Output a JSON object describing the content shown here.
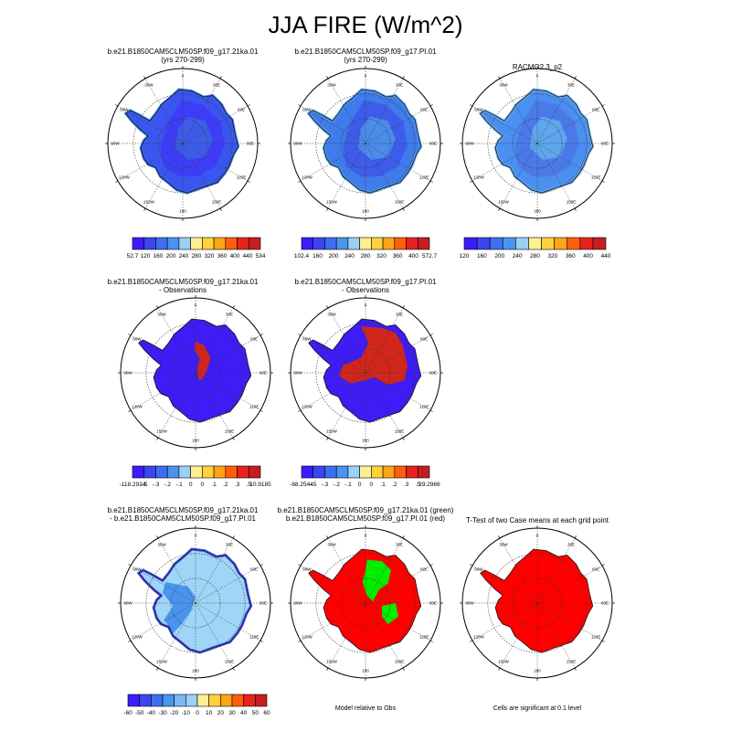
{
  "title": "JJA FIRE (W/m^2)",
  "grid_labels": [
    "0",
    "30E",
    "60E",
    "90E",
    "120E",
    "150E",
    "180",
    "150W",
    "120W",
    "90W",
    "60W",
    "30W"
  ],
  "rows": [
    {
      "panels": [
        {
          "title1": "b.e21.B1850CAM5CLM50SP.f09_g17.21ka.01",
          "title2": "(yrs 270-299)",
          "fill": "#3a55f0",
          "interior": "#3d3df7",
          "interior2": "#3d5de8",
          "coast": "#2f6fe6"
        },
        {
          "title1": "b.e21.B1850CAM5CLM50SP.f09_g17.PI.01",
          "title2": "(yrs 270-299)",
          "fill": "#3f7bea",
          "interior": "#3d5ce9",
          "interior2": "#4a8ce8",
          "coast": "#5aa8ec"
        },
        {
          "title1": "RACMO2.3_p2",
          "title2": "",
          "fill": "#4b8ff0",
          "interior": "#4a7ae8",
          "interior2": "#5ea6ee",
          "coast": "#6db7f1"
        }
      ],
      "colorbars": [
        {
          "colors": [
            "#3b1cff",
            "#3b46f0",
            "#3d6ff0",
            "#4a94f0",
            "#9ad0f6",
            "#ffef93",
            "#ffd23c",
            "#ffa318",
            "#ff5e0c",
            "#e8221c",
            "#c41e21"
          ],
          "labels": [
            "52.7",
            "120",
            "160",
            "200",
            "240",
            "280",
            "320",
            "360",
            "400",
            "440",
            "534"
          ]
        },
        {
          "colors": [
            "#3b1cff",
            "#3b46f0",
            "#3d6ff0",
            "#4a94f0",
            "#9ad0f6",
            "#ffef93",
            "#ffd23c",
            "#ffa318",
            "#ff5e0c",
            "#e8221c",
            "#c41e21"
          ],
          "labels": [
            "102.4",
            "160",
            "200",
            "240",
            "280",
            "320",
            "360",
            "400",
            "572.7"
          ]
        },
        {
          "colors": [
            "#3b1cff",
            "#3b46f0",
            "#3d6ff0",
            "#4a94f0",
            "#9ad0f6",
            "#ffef93",
            "#ffd23c",
            "#ffa318",
            "#ff5e0c",
            "#e8221c",
            "#c41e21"
          ],
          "labels": [
            "120",
            "160",
            "200",
            "240",
            "280",
            "320",
            "360",
            "400",
            "440"
          ]
        }
      ]
    },
    {
      "panels": [
        {
          "title1": "b.e21.B1850CAM5CLM50SP.f09_g17.21ka.01",
          "title2": "- Observations",
          "fill": "#3d1cf5",
          "interior": "#d1261c",
          "coast": "#3d1cf5"
        },
        {
          "title1": "b.e21.B1850CAM5CLM50SP.f09_g17.PI.01",
          "title2": "- Observations",
          "fill": "#3d1cf5",
          "interior": "#d0261c",
          "coast": "#3d1cf5"
        }
      ],
      "colorbars": [
        {
          "colors": [
            "#3b1cff",
            "#3b46f0",
            "#3d6ff0",
            "#4a94f0",
            "#9ad0f6",
            "#ffef93",
            "#ffd23c",
            "#ffa318",
            "#ff5e0c",
            "#e8221c",
            "#c41e21"
          ],
          "labels": [
            "-118.2924",
            "-.5",
            "-.3",
            "-.2",
            "-.1",
            "0",
            "0",
            ".1",
            ".2",
            ".3",
            ".5",
            "10.9185"
          ]
        },
        {
          "colors": [
            "#3b1cff",
            "#3b46f0",
            "#3d6ff0",
            "#4a94f0",
            "#9ad0f6",
            "#ffef93",
            "#ffd23c",
            "#ffa318",
            "#ff5e0c",
            "#e8221c",
            "#c41e21"
          ],
          "labels": [
            "-68.2544",
            "-.5",
            "-.3",
            "-.2",
            "-.1",
            "0",
            "0",
            ".1",
            ".2",
            ".3",
            ".5",
            "29.2966"
          ]
        }
      ]
    },
    {
      "panels": [
        {
          "title1": "b.e21.B1850CAM5CLM50SP.f09_g17.21ka.01",
          "title2": "- b.e21.B1850CAM5CLM50SP.f09_g17.PI.01",
          "fill": "#9fd6f7",
          "interior": "#4a94f0",
          "coast": "#3b46f0"
        },
        {
          "title1": "b.e21.B1850CAM5CLM50SP.f09_g17.21ka.01 (green)",
          "title2": "b.e21.B1850CAM5CLM50SP.f09_g17.PI.01 (red)",
          "fill": "#ff0000",
          "interior": "#00ee00",
          "coast": "#ff0000",
          "caption": "Model relative to Obs"
        },
        {
          "title1": "T-Test of two Case means at each grid point",
          "title2": "",
          "fill": "#ff0000",
          "interior": "#ff0000",
          "coast": "#ff0000",
          "caption": "Cells are significant at 0.1 level"
        }
      ],
      "colorbars": [
        {
          "colors": [
            "#3b1cff",
            "#3b46f0",
            "#3d6ff0",
            "#4a94f0",
            "#78b8f4",
            "#9ad0f6",
            "#ffef93",
            "#ffd23c",
            "#ffa318",
            "#ff5e0c",
            "#e8221c",
            "#c41e21"
          ],
          "labels": [
            "-60",
            "-50",
            "-40",
            "-30",
            "-20",
            "-10",
            "0",
            "10",
            "20",
            "30",
            "40",
            "50",
            "60"
          ]
        }
      ]
    }
  ]
}
